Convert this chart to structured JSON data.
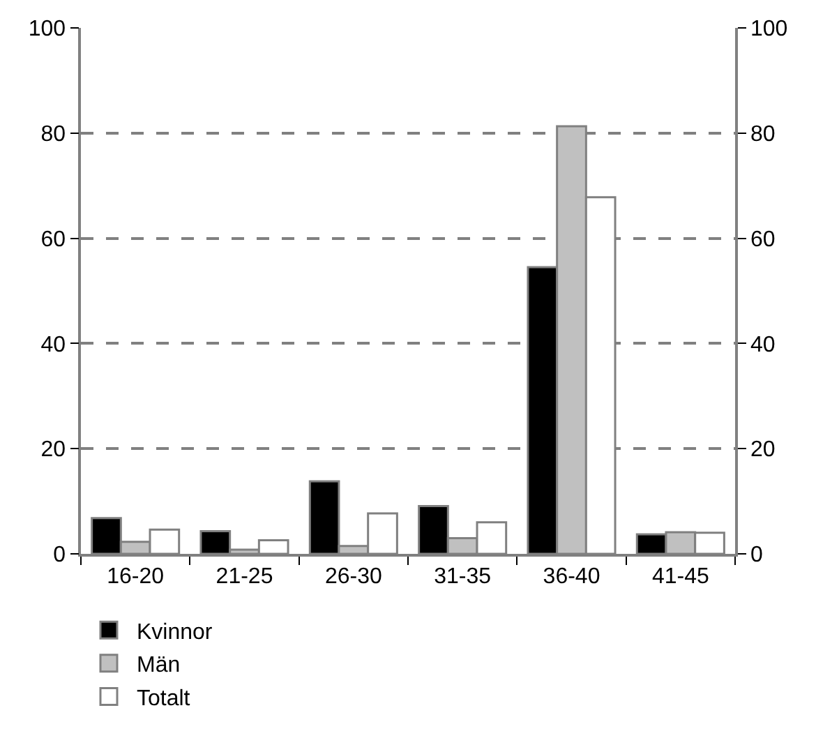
{
  "chart_data": {
    "type": "bar",
    "categories": [
      "16-20",
      "21-25",
      "26-30",
      "31-35",
      "36-40",
      "41-45"
    ],
    "series": [
      {
        "name": "Kvinnor",
        "color": "#000000",
        "values": [
          6.8,
          4.3,
          13.8,
          9.1,
          54.5,
          3.7
        ]
      },
      {
        "name": "Män",
        "color": "#c0c0c0",
        "values": [
          2.3,
          0.8,
          1.5,
          3.0,
          81.3,
          4.1
        ]
      },
      {
        "name": "Totalt",
        "color": "#ffffff",
        "values": [
          4.6,
          2.6,
          7.7,
          6.0,
          67.8,
          4.0
        ]
      }
    ],
    "ylim": [
      0,
      100
    ],
    "yticks": [
      0,
      20,
      40,
      60,
      80,
      100
    ],
    "y2lim": [
      0,
      100
    ],
    "y2ticks": [
      0,
      20,
      40,
      60,
      80,
      100
    ],
    "grid": "y",
    "legend": "bottom left"
  }
}
